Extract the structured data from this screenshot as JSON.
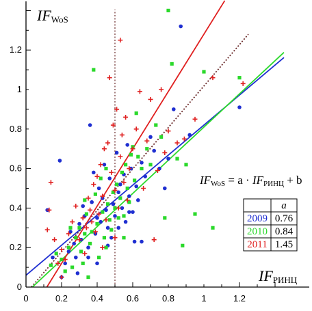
{
  "chart_data": {
    "type": "scatter",
    "xlabel": {
      "main": "IF",
      "sub": "РИНЦ"
    },
    "ylabel": {
      "main": "IF",
      "sub": "WoS"
    },
    "xlim": [
      0,
      1.4
    ],
    "ylim": [
      0,
      1.4
    ],
    "xticks": [
      "0",
      "0.2",
      "0.4",
      "0.6",
      "0.8",
      "1",
      "1.2"
    ],
    "yticks": [
      "0",
      "0.2",
      "0.4",
      "0.6",
      "0.8",
      "1",
      "1.2"
    ],
    "reference_vline_x": 0.5,
    "diagonal_line": {
      "style": "dotted",
      "color": "#6b2b2b",
      "from": [
        0.03,
        0
      ],
      "to": [
        1.25,
        1.28
      ]
    },
    "formula": {
      "lhs": "IF",
      "lhs_sub": "WoS",
      "mid": " = a · ",
      "rhs": "IF",
      "rhs_sub": "РИНЦ",
      "tail": " + b"
    },
    "table": {
      "header": "a",
      "rows": [
        {
          "year": "2009",
          "a": "0.76",
          "color": "#1f2fd1"
        },
        {
          "year": "2010",
          "a": "0.84",
          "color": "#2bd92b"
        },
        {
          "year": "2011",
          "a": "1.45",
          "color": "#e02020"
        }
      ]
    },
    "series": [
      {
        "name": "2009",
        "marker": "circle",
        "color": "#1f2fd1",
        "fit": {
          "a": 0.76,
          "b": 0.06
        },
        "points": [
          [
            0.12,
            0.39
          ],
          [
            0.15,
            0.15
          ],
          [
            0.19,
            0.64
          ],
          [
            0.2,
            0.05
          ],
          [
            0.22,
            0.12
          ],
          [
            0.24,
            0.18
          ],
          [
            0.25,
            0.28
          ],
          [
            0.27,
            0.22
          ],
          [
            0.28,
            0.15
          ],
          [
            0.29,
            0.07
          ],
          [
            0.3,
            0.32
          ],
          [
            0.31,
            0.24
          ],
          [
            0.32,
            0.41
          ],
          [
            0.33,
            0.36
          ],
          [
            0.35,
            0.2
          ],
          [
            0.36,
            0.82
          ],
          [
            0.37,
            0.43
          ],
          [
            0.38,
            0.58
          ],
          [
            0.39,
            0.27
          ],
          [
            0.4,
            0.35
          ],
          [
            0.41,
            0.5
          ],
          [
            0.42,
            0.33
          ],
          [
            0.43,
            0.45
          ],
          [
            0.44,
            0.62
          ],
          [
            0.45,
            0.39
          ],
          [
            0.46,
            0.3
          ],
          [
            0.47,
            0.55
          ],
          [
            0.48,
            0.25
          ],
          [
            0.49,
            0.42
          ],
          [
            0.5,
            0.36
          ],
          [
            0.51,
            0.68
          ],
          [
            0.52,
            0.48
          ],
          [
            0.53,
            0.52
          ],
          [
            0.54,
            0.4
          ],
          [
            0.55,
            0.57
          ],
          [
            0.56,
            0.33
          ],
          [
            0.57,
            0.72
          ],
          [
            0.58,
            0.46
          ],
          [
            0.59,
            0.6
          ],
          [
            0.6,
            0.38
          ],
          [
            0.61,
            0.23
          ],
          [
            0.62,
            0.51
          ],
          [
            0.63,
            0.44
          ],
          [
            0.65,
            0.63
          ],
          [
            0.67,
            0.56
          ],
          [
            0.7,
            0.76
          ],
          [
            0.72,
            0.69
          ],
          [
            0.75,
            0.6
          ],
          [
            0.78,
            0.5
          ],
          [
            0.8,
            0.65
          ],
          [
            0.83,
            0.9
          ],
          [
            0.87,
            1.32
          ],
          [
            0.92,
            0.77
          ],
          [
            1.2,
            0.91
          ],
          [
            0.58,
            0.38
          ],
          [
            0.46,
            0.21
          ],
          [
            0.4,
            0.12
          ],
          [
            0.35,
            0.15
          ],
          [
            0.52,
            0.3
          ],
          [
            0.65,
            0.23
          ]
        ]
      },
      {
        "name": "2010",
        "marker": "square",
        "color": "#2bd92b",
        "fit": {
          "a": 0.84,
          "b": -0.03
        },
        "points": [
          [
            0.14,
            0.11
          ],
          [
            0.17,
            0.17
          ],
          [
            0.2,
            0.14
          ],
          [
            0.22,
            0.08
          ],
          [
            0.24,
            0.2
          ],
          [
            0.26,
            0.1
          ],
          [
            0.28,
            0.25
          ],
          [
            0.3,
            0.3
          ],
          [
            0.31,
            0.18
          ],
          [
            0.32,
            0.12
          ],
          [
            0.33,
            0.44
          ],
          [
            0.34,
            0.37
          ],
          [
            0.35,
            0.05
          ],
          [
            0.36,
            0.22
          ],
          [
            0.37,
            0.28
          ],
          [
            0.38,
            1.1
          ],
          [
            0.39,
            0.47
          ],
          [
            0.4,
            0.32
          ],
          [
            0.41,
            0.15
          ],
          [
            0.42,
            0.55
          ],
          [
            0.43,
            0.38
          ],
          [
            0.44,
            0.25
          ],
          [
            0.45,
            0.6
          ],
          [
            0.46,
            0.42
          ],
          [
            0.47,
            0.34
          ],
          [
            0.48,
            0.29
          ],
          [
            0.49,
            0.48
          ],
          [
            0.5,
            0.4
          ],
          [
            0.51,
            0.52
          ],
          [
            0.52,
            0.35
          ],
          [
            0.53,
            0.45
          ],
          [
            0.54,
            0.58
          ],
          [
            0.55,
            0.36
          ],
          [
            0.56,
            0.62
          ],
          [
            0.57,
            0.5
          ],
          [
            0.58,
            0.43
          ],
          [
            0.59,
            0.67
          ],
          [
            0.6,
            0.71
          ],
          [
            0.61,
            0.54
          ],
          [
            0.62,
            0.88
          ],
          [
            0.63,
            0.66
          ],
          [
            0.65,
            0.6
          ],
          [
            0.68,
            0.7
          ],
          [
            0.7,
            0.62
          ],
          [
            0.73,
            0.82
          ],
          [
            0.76,
            0.76
          ],
          [
            0.78,
            0.35
          ],
          [
            0.8,
            1.4
          ],
          [
            0.82,
            1.13
          ],
          [
            0.85,
            0.65
          ],
          [
            0.88,
            0.21
          ],
          [
            0.9,
            0.62
          ],
          [
            0.95,
            0.37
          ],
          [
            1.0,
            1.09
          ],
          [
            1.05,
            0.3
          ],
          [
            1.2,
            1.06
          ],
          [
            0.25,
            0.3
          ],
          [
            0.45,
            0.2
          ],
          [
            0.55,
            0.25
          ],
          [
            0.33,
            0.27
          ]
        ]
      },
      {
        "name": "2011",
        "marker": "plus",
        "color": "#e02020",
        "fit": {
          "a": 1.45,
          "b": -0.17
        },
        "points": [
          [
            0.12,
            0.29
          ],
          [
            0.13,
            0.39
          ],
          [
            0.14,
            0.53
          ],
          [
            0.16,
            0.24
          ],
          [
            0.18,
            0.12
          ],
          [
            0.2,
            0.19
          ],
          [
            0.22,
            0.14
          ],
          [
            0.24,
            0.27
          ],
          [
            0.26,
            0.33
          ],
          [
            0.28,
            0.41
          ],
          [
            0.3,
            0.24
          ],
          [
            0.32,
            0.35
          ],
          [
            0.34,
            0.3
          ],
          [
            0.35,
            0.45
          ],
          [
            0.36,
            0.39
          ],
          [
            0.38,
            0.52
          ],
          [
            0.39,
            0.28
          ],
          [
            0.4,
            0.56
          ],
          [
            0.41,
            0.37
          ],
          [
            0.42,
            0.62
          ],
          [
            0.43,
            0.46
          ],
          [
            0.44,
            0.7
          ],
          [
            0.45,
            0.34
          ],
          [
            0.46,
            0.73
          ],
          [
            0.47,
            1.06
          ],
          [
            0.48,
            0.58
          ],
          [
            0.49,
            0.82
          ],
          [
            0.5,
            0.49
          ],
          [
            0.51,
            0.9
          ],
          [
            0.52,
            0.4
          ],
          [
            0.53,
            0.66
          ],
          [
            0.54,
            0.77
          ],
          [
            0.55,
            0.53
          ],
          [
            0.56,
            0.86
          ],
          [
            0.57,
            0.44
          ],
          [
            0.58,
            0.6
          ],
          [
            0.6,
            0.7
          ],
          [
            0.62,
            0.8
          ],
          [
            0.64,
            0.99
          ],
          [
            0.66,
            0.5
          ],
          [
            0.68,
            0.74
          ],
          [
            0.7,
            0.95
          ],
          [
            0.72,
            0.24
          ],
          [
            0.74,
            0.59
          ],
          [
            0.76,
            1.0
          ],
          [
            0.78,
            0.68
          ],
          [
            0.8,
            0.79
          ],
          [
            0.85,
            0.73
          ],
          [
            0.89,
            0.75
          ],
          [
            0.95,
            0.85
          ],
          [
            1.05,
            1.06
          ],
          [
            1.22,
            1.03
          ],
          [
            0.53,
            1.25
          ],
          [
            0.2,
            0.05
          ],
          [
            0.33,
            0.17
          ],
          [
            0.43,
            0.2
          ],
          [
            0.5,
            0.25
          ],
          [
            0.37,
            0.33
          ]
        ]
      }
    ]
  }
}
